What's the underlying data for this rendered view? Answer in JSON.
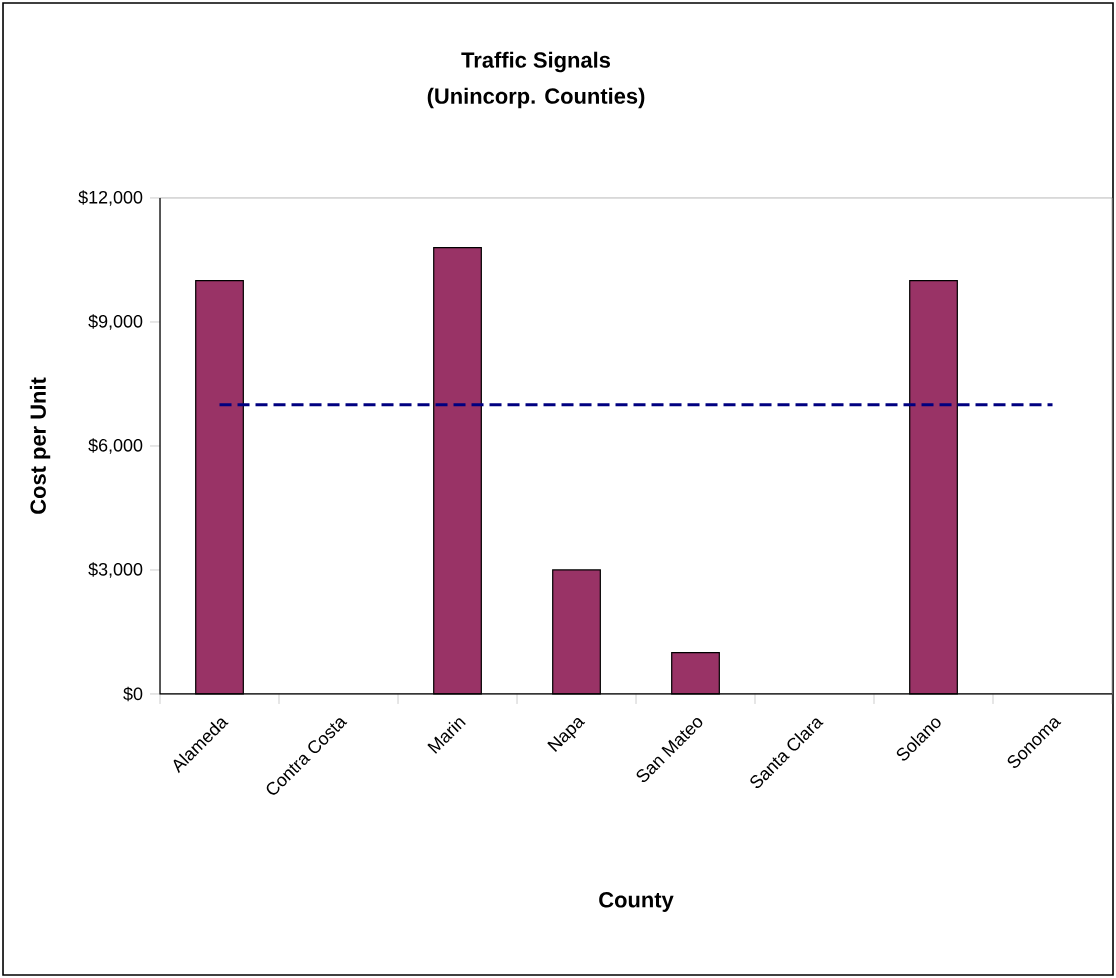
{
  "chart_data": {
    "type": "bar",
    "title": "Traffic Signals",
    "subtitle": "(Unincorp. Counties)",
    "xlabel": "County",
    "ylabel": "Cost per Unit",
    "categories": [
      "Alameda",
      "Contra Costa",
      "Marin",
      "Napa",
      "San Mateo",
      "Santa Clara",
      "Solano",
      "Sonoma"
    ],
    "series": [
      {
        "color": "#993366",
        "values": [
          10000,
          null,
          10800,
          3000,
          1000,
          null,
          10000,
          null
        ]
      },
      {
        "type": "line",
        "color": "#000080",
        "line_style": "dashed",
        "marker": "none",
        "values": [
          7000,
          7000,
          7000,
          7000,
          7000,
          7000,
          7000,
          7000
        ]
      }
    ],
    "ylim": [
      0,
      12000
    ],
    "yticks": [
      {
        "value": 0,
        "label": "$0"
      },
      {
        "value": 3000,
        "label": "$3,000"
      },
      {
        "value": 6000,
        "label": "$6,000"
      },
      {
        "value": 9000,
        "label": "$9,000"
      },
      {
        "value": 12000,
        "label": "$12,000"
      }
    ],
    "grid": false
  }
}
